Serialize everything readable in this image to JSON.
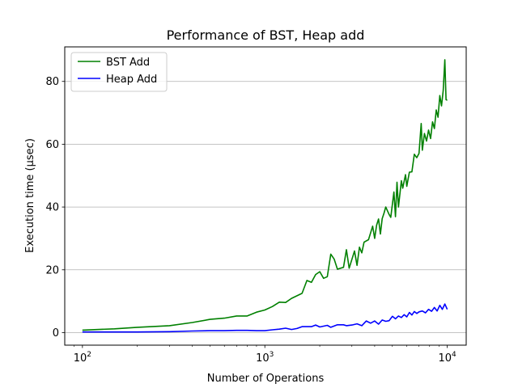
{
  "chart_data": {
    "type": "line",
    "title": "Performance of BST, Heap add",
    "xlabel": "Number of Operations",
    "ylabel": "Execution time (µsec)",
    "xscale": "log",
    "xlim": [
      80,
      12700
    ],
    "ylim": [
      -4,
      91
    ],
    "grid": "y",
    "legend_position": "top-left",
    "x_ticks": [
      {
        "value": 100,
        "base": "10",
        "exp": "2"
      },
      {
        "value": 1000,
        "base": "10",
        "exp": "3"
      },
      {
        "value": 10000,
        "base": "10",
        "exp": "4"
      }
    ],
    "y_ticks": [
      0,
      20,
      40,
      60,
      80
    ],
    "series": [
      {
        "name": "BST Add",
        "color": "#008000",
        "points": [
          [
            100,
            0.8
          ],
          [
            150,
            1.2
          ],
          [
            200,
            1.7
          ],
          [
            300,
            2.2
          ],
          [
            400,
            3.2
          ],
          [
            500,
            4.2
          ],
          [
            600,
            4.6
          ],
          [
            700,
            5.3
          ],
          [
            800,
            5.3
          ],
          [
            900,
            6.5
          ],
          [
            1000,
            7.2
          ],
          [
            1100,
            8.3
          ],
          [
            1200,
            9.7
          ],
          [
            1300,
            9.6
          ],
          [
            1400,
            10.9
          ],
          [
            1600,
            12.5
          ],
          [
            1700,
            16.6
          ],
          [
            1800,
            16.0
          ],
          [
            1900,
            18.5
          ],
          [
            2000,
            19.4
          ],
          [
            2100,
            17.3
          ],
          [
            2200,
            17.8
          ],
          [
            2300,
            25.0
          ],
          [
            2400,
            23.4
          ],
          [
            2500,
            20.2
          ],
          [
            2700,
            20.8
          ],
          [
            2800,
            26.4
          ],
          [
            2900,
            20.5
          ],
          [
            3100,
            26.0
          ],
          [
            3200,
            21.4
          ],
          [
            3300,
            27.2
          ],
          [
            3400,
            25.4
          ],
          [
            3500,
            28.8
          ],
          [
            3700,
            29.6
          ],
          [
            3900,
            33.9
          ],
          [
            4000,
            30.0
          ],
          [
            4100,
            34.2
          ],
          [
            4200,
            36.2
          ],
          [
            4300,
            31.4
          ],
          [
            4400,
            36.3
          ],
          [
            4500,
            38.0
          ],
          [
            4600,
            40.0
          ],
          [
            4800,
            37.6
          ],
          [
            4900,
            36.7
          ],
          [
            5100,
            44.8
          ],
          [
            5200,
            36.9
          ],
          [
            5300,
            47.9
          ],
          [
            5400,
            40.0
          ],
          [
            5600,
            48.4
          ],
          [
            5700,
            46.0
          ],
          [
            5900,
            50.3
          ],
          [
            6000,
            46.6
          ],
          [
            6200,
            51.1
          ],
          [
            6400,
            51.2
          ],
          [
            6600,
            56.8
          ],
          [
            6800,
            55.7
          ],
          [
            7000,
            57.1
          ],
          [
            7200,
            66.6
          ],
          [
            7300,
            58.1
          ],
          [
            7500,
            63.4
          ],
          [
            7700,
            61.0
          ],
          [
            7900,
            64.5
          ],
          [
            8100,
            61.8
          ],
          [
            8300,
            67.1
          ],
          [
            8500,
            65.0
          ],
          [
            8700,
            70.9
          ],
          [
            8900,
            68.6
          ],
          [
            9100,
            75.5
          ],
          [
            9300,
            72.2
          ],
          [
            9500,
            77.1
          ],
          [
            9700,
            86.9
          ],
          [
            9850,
            74.2
          ],
          [
            10000,
            74.0
          ]
        ]
      },
      {
        "name": "Heap Add",
        "color": "#0000ff",
        "points": [
          [
            100,
            0.2
          ],
          [
            200,
            0.2
          ],
          [
            300,
            0.3
          ],
          [
            400,
            0.5
          ],
          [
            500,
            0.6
          ],
          [
            600,
            0.6
          ],
          [
            700,
            0.7
          ],
          [
            800,
            0.7
          ],
          [
            900,
            0.6
          ],
          [
            1000,
            0.6
          ],
          [
            1100,
            0.9
          ],
          [
            1200,
            1.1
          ],
          [
            1300,
            1.4
          ],
          [
            1400,
            1.0
          ],
          [
            1500,
            1.3
          ],
          [
            1600,
            1.9
          ],
          [
            1800,
            1.9
          ],
          [
            1900,
            2.4
          ],
          [
            2000,
            1.8
          ],
          [
            2200,
            2.3
          ],
          [
            2300,
            1.7
          ],
          [
            2500,
            2.5
          ],
          [
            2700,
            2.5
          ],
          [
            2800,
            2.2
          ],
          [
            3000,
            2.4
          ],
          [
            3200,
            2.8
          ],
          [
            3400,
            2.2
          ],
          [
            3600,
            3.7
          ],
          [
            3800,
            3.0
          ],
          [
            4000,
            3.7
          ],
          [
            4200,
            2.7
          ],
          [
            4400,
            4.0
          ],
          [
            4600,
            3.6
          ],
          [
            4800,
            3.8
          ],
          [
            5000,
            5.2
          ],
          [
            5200,
            4.4
          ],
          [
            5400,
            5.3
          ],
          [
            5600,
            4.8
          ],
          [
            5800,
            5.7
          ],
          [
            6000,
            5.0
          ],
          [
            6200,
            6.4
          ],
          [
            6400,
            5.6
          ],
          [
            6600,
            6.7
          ],
          [
            6800,
            6.1
          ],
          [
            7000,
            6.6
          ],
          [
            7300,
            6.9
          ],
          [
            7600,
            6.3
          ],
          [
            7900,
            7.4
          ],
          [
            8200,
            6.8
          ],
          [
            8500,
            8.0
          ],
          [
            8800,
            6.9
          ],
          [
            9100,
            8.7
          ],
          [
            9400,
            7.4
          ],
          [
            9700,
            9.1
          ],
          [
            10000,
            7.4
          ]
        ]
      }
    ]
  }
}
